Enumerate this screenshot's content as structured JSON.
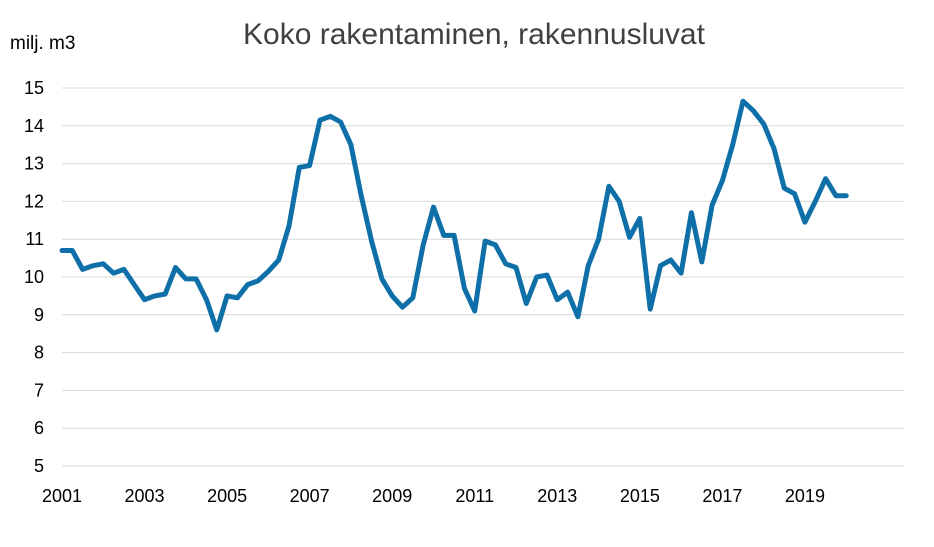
{
  "chart_data": {
    "type": "line",
    "title": "Koko rakentaminen, rakennusluvat",
    "ylabel": "milj. m3",
    "xlabel": "",
    "ylim": [
      5,
      15
    ],
    "yticks": [
      5,
      6,
      7,
      8,
      9,
      10,
      11,
      12,
      13,
      14,
      15
    ],
    "xlim": [
      2001,
      2021.4
    ],
    "xticks": [
      "2001",
      "2003",
      "2005",
      "2007",
      "2009",
      "2011",
      "2013",
      "2015",
      "2017",
      "2019"
    ],
    "grid": true,
    "legend": "none",
    "colors": {
      "series": "#0f6fa8",
      "grid": "#d9d9d9",
      "title": "#404040"
    },
    "series": [
      {
        "x": [
          2001.0,
          2001.25,
          2001.5,
          2001.75,
          2002.0,
          2002.25,
          2002.5,
          2002.75,
          2003.0,
          2003.25,
          2003.5,
          2003.75,
          2004.0,
          2004.25,
          2004.5,
          2004.75,
          2005.0,
          2005.25,
          2005.5,
          2005.75,
          2006.0,
          2006.25,
          2006.5,
          2006.75,
          2007.0,
          2007.25,
          2007.5,
          2007.75,
          2008.0,
          2008.25,
          2008.5,
          2008.75,
          2009.0,
          2009.25,
          2009.5,
          2009.75,
          2010.0,
          2010.25,
          2010.5,
          2010.75,
          2011.0,
          2011.25,
          2011.5,
          2011.75,
          2012.0,
          2012.25,
          2012.5,
          2012.75,
          2013.0,
          2013.25,
          2013.5,
          2013.75,
          2014.0,
          2014.25,
          2014.5,
          2014.75,
          2015.0,
          2015.25,
          2015.5,
          2015.75,
          2016.0,
          2016.25,
          2016.5,
          2016.75,
          2017.0,
          2017.25,
          2017.5,
          2017.75,
          2018.0,
          2018.25,
          2018.5,
          2018.75,
          2019.0,
          2019.25,
          2019.5,
          2019.75,
          2020.0
        ],
        "values": [
          10.7,
          10.7,
          10.2,
          10.3,
          10.35,
          10.1,
          10.2,
          9.8,
          9.4,
          9.5,
          9.55,
          10.25,
          9.95,
          9.95,
          9.4,
          8.6,
          9.5,
          9.45,
          9.8,
          9.9,
          10.15,
          10.45,
          11.35,
          12.9,
          12.95,
          14.15,
          14.25,
          14.1,
          13.5,
          12.15,
          10.95,
          9.95,
          9.5,
          9.2,
          9.45,
          10.85,
          11.85,
          11.1,
          11.1,
          9.7,
          9.1,
          10.95,
          10.85,
          10.35,
          10.25,
          9.3,
          10.0,
          10.05,
          9.4,
          9.6,
          8.95,
          10.3,
          11.0,
          12.4,
          12.0,
          11.05,
          11.55,
          9.15,
          10.3,
          10.45,
          10.1,
          11.7,
          10.4,
          11.9,
          12.55,
          13.5,
          14.65,
          14.4,
          14.05,
          13.4,
          12.35,
          12.2,
          11.45,
          12.0,
          12.6,
          12.15,
          12.15
        ]
      }
    ]
  }
}
